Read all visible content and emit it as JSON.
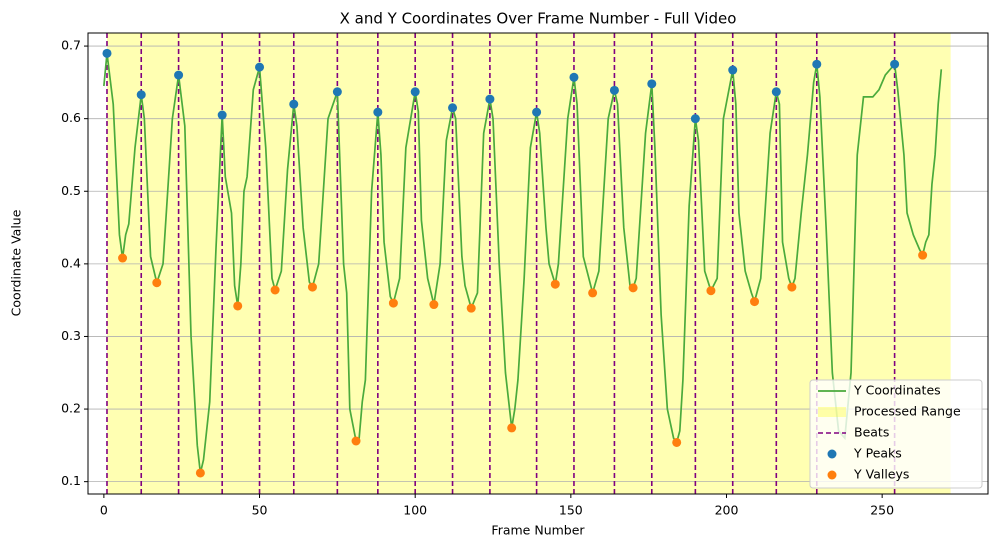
{
  "chart_data": {
    "type": "line",
    "title": "X and Y Coordinates Over Frame Number - Full Video",
    "xlabel": "Frame Number",
    "ylabel": "Coordinate Value",
    "xlim": [
      -5.1,
      284
    ],
    "ylim": [
      0.083,
      0.718
    ],
    "xticks": [
      0,
      50,
      100,
      150,
      200,
      250
    ],
    "yticks": [
      0.1,
      0.2,
      0.3,
      0.4,
      0.5,
      0.6,
      0.7
    ],
    "grid": "y",
    "legend": "lower right",
    "series": [
      {
        "name": "Y Coordinates",
        "color": "#4aaa3c",
        "x": [
          0,
          1,
          3,
          5,
          6,
          7,
          8,
          10,
          12,
          13,
          15,
          17,
          19,
          22,
          24,
          26,
          28,
          30,
          31,
          32,
          34,
          36,
          38,
          39,
          41,
          42,
          43,
          44,
          45,
          46,
          48,
          50,
          52,
          54,
          55,
          57,
          59,
          61,
          62,
          64,
          66,
          67,
          69,
          72,
          75,
          77,
          78,
          79,
          81,
          82,
          83,
          84,
          86,
          88,
          89,
          90,
          92,
          93,
          95,
          97,
          100,
          101,
          102,
          104,
          106,
          108,
          110,
          112,
          113,
          115,
          116,
          118,
          120,
          122,
          124,
          125,
          127,
          129,
          131,
          132,
          133,
          135,
          137,
          139,
          140,
          142,
          143,
          145,
          146,
          149,
          151,
          152,
          154,
          157,
          159,
          162,
          164,
          165,
          167,
          169,
          170,
          171,
          174,
          176,
          177,
          179,
          181,
          183,
          184,
          185,
          186,
          188,
          190,
          191,
          193,
          195,
          197,
          199,
          202,
          203,
          204,
          206,
          208,
          209,
          211,
          214,
          216,
          217,
          218,
          220,
          221,
          222,
          224,
          226,
          228,
          229,
          230,
          232,
          234,
          236,
          238,
          240,
          242,
          244,
          247,
          249,
          251,
          254,
          255,
          257,
          258,
          260,
          262,
          263,
          264,
          265,
          266,
          267,
          268,
          269
        ],
        "values": [
          0.645,
          0.69,
          0.62,
          0.44,
          0.408,
          0.44,
          0.455,
          0.56,
          0.633,
          0.6,
          0.41,
          0.374,
          0.4,
          0.6,
          0.66,
          0.59,
          0.3,
          0.15,
          0.112,
          0.13,
          0.21,
          0.42,
          0.605,
          0.52,
          0.47,
          0.37,
          0.342,
          0.4,
          0.5,
          0.52,
          0.64,
          0.671,
          0.56,
          0.38,
          0.364,
          0.39,
          0.53,
          0.62,
          0.59,
          0.45,
          0.375,
          0.368,
          0.4,
          0.6,
          0.637,
          0.4,
          0.36,
          0.2,
          0.156,
          0.16,
          0.21,
          0.24,
          0.5,
          0.609,
          0.55,
          0.43,
          0.355,
          0.346,
          0.38,
          0.56,
          0.637,
          0.61,
          0.46,
          0.38,
          0.344,
          0.4,
          0.57,
          0.615,
          0.6,
          0.41,
          0.37,
          0.339,
          0.36,
          0.58,
          0.627,
          0.6,
          0.4,
          0.25,
          0.174,
          0.2,
          0.24,
          0.38,
          0.56,
          0.609,
          0.58,
          0.45,
          0.4,
          0.372,
          0.4,
          0.6,
          0.657,
          0.62,
          0.41,
          0.36,
          0.39,
          0.6,
          0.639,
          0.62,
          0.45,
          0.37,
          0.367,
          0.38,
          0.58,
          0.648,
          0.56,
          0.33,
          0.2,
          0.16,
          0.154,
          0.17,
          0.24,
          0.48,
          0.6,
          0.57,
          0.39,
          0.363,
          0.38,
          0.6,
          0.667,
          0.62,
          0.47,
          0.39,
          0.36,
          0.348,
          0.38,
          0.58,
          0.637,
          0.62,
          0.43,
          0.38,
          0.368,
          0.38,
          0.47,
          0.55,
          0.65,
          0.675,
          0.63,
          0.45,
          0.25,
          0.17,
          0.16,
          0.25,
          0.55,
          0.63,
          0.63,
          0.64,
          0.66,
          0.675,
          0.64,
          0.55,
          0.47,
          0.44,
          0.42,
          0.412,
          0.43,
          0.44,
          0.51,
          0.55,
          0.62,
          0.668
        ]
      }
    ],
    "processed_range": {
      "name": "Processed Range",
      "color": "#ffff00",
      "range": [
        1,
        272
      ]
    },
    "beats": {
      "name": "Beats",
      "color": "#800080",
      "x": [
        1,
        12,
        24,
        38,
        50,
        61,
        75,
        88,
        100,
        112,
        124,
        139,
        151,
        164,
        176,
        190,
        202,
        216,
        229,
        254
      ]
    },
    "peaks": {
      "name": "Y Peaks",
      "color": "#1f77b4",
      "x": [
        1,
        12,
        24,
        38,
        50,
        61,
        75,
        88,
        100,
        112,
        124,
        139,
        151,
        164,
        176,
        190,
        202,
        216,
        229,
        254
      ],
      "values": [
        0.69,
        0.633,
        0.66,
        0.605,
        0.671,
        0.62,
        0.637,
        0.609,
        0.637,
        0.615,
        0.627,
        0.609,
        0.657,
        0.639,
        0.648,
        0.6,
        0.667,
        0.637,
        0.675,
        0.675
      ]
    },
    "valleys": {
      "name": "Y Valleys",
      "color": "#ff7f0e",
      "x": [
        6,
        17,
        31,
        43,
        55,
        67,
        81,
        93,
        106,
        118,
        131,
        145,
        157,
        170,
        184,
        195,
        209,
        221,
        263
      ],
      "values": [
        0.408,
        0.374,
        0.112,
        0.342,
        0.364,
        0.368,
        0.156,
        0.346,
        0.344,
        0.339,
        0.174,
        0.372,
        0.36,
        0.367,
        0.154,
        0.363,
        0.348,
        0.368,
        0.412
      ]
    }
  }
}
